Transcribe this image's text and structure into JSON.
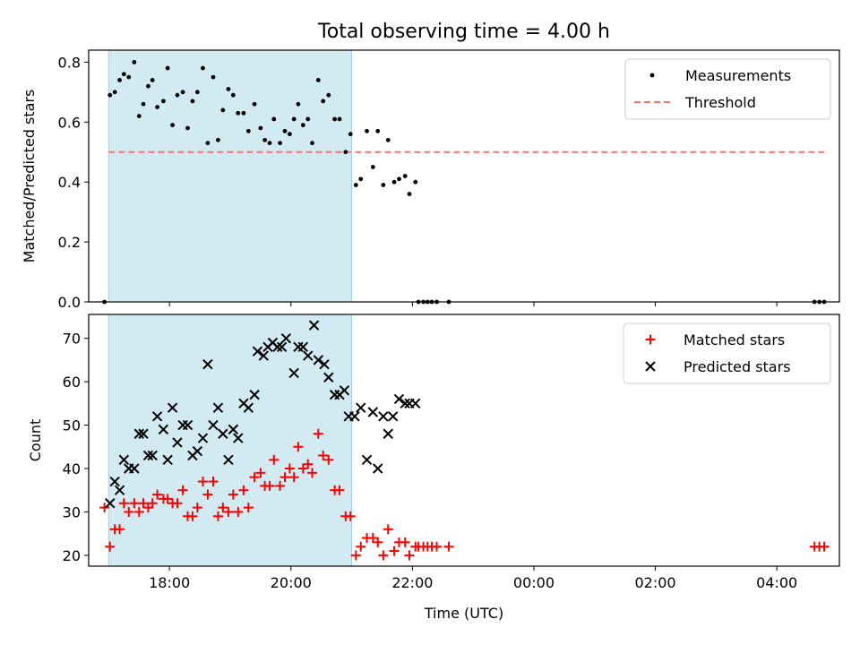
{
  "figure": {
    "title": "Total observing time = 4.00 h"
  },
  "chart_data": [
    {
      "type": "scatter",
      "id": "ratio",
      "xlabel": "",
      "ylabel": "Matched/Predicted stars",
      "xlim": [
        16.67,
        29.03
      ],
      "ylim": [
        0,
        0.84
      ],
      "yticks": [
        0.0,
        0.2,
        0.4,
        0.6,
        0.8
      ],
      "ytick_labels": [
        "0.0",
        "0.2",
        "0.4",
        "0.6",
        "0.8"
      ],
      "highlight_span": {
        "x": [
          17.0,
          21.0
        ],
        "color": "#add8e6"
      },
      "legend": {
        "position": "upper right",
        "entries": [
          {
            "label": "Measurements",
            "marker": "dot",
            "color": "#000000"
          },
          {
            "label": "Threshold",
            "marker": "dashed-line",
            "color": "#ff7070"
          }
        ]
      },
      "threshold": {
        "y": 0.5,
        "x": [
          17.0,
          28.8
        ],
        "color": "#ff7070"
      },
      "series": [
        {
          "name": "Measurements",
          "color": "#000000",
          "points": [
            [
              16.93,
              0.0
            ],
            [
              17.02,
              0.69
            ],
            [
              17.1,
              0.7
            ],
            [
              17.18,
              0.74
            ],
            [
              17.25,
              0.76
            ],
            [
              17.33,
              0.75
            ],
            [
              17.42,
              0.8
            ],
            [
              17.5,
              0.62
            ],
            [
              17.57,
              0.66
            ],
            [
              17.65,
              0.72
            ],
            [
              17.72,
              0.74
            ],
            [
              17.8,
              0.65
            ],
            [
              17.9,
              0.67
            ],
            [
              17.97,
              0.78
            ],
            [
              18.05,
              0.59
            ],
            [
              18.13,
              0.69
            ],
            [
              18.22,
              0.7
            ],
            [
              18.3,
              0.58
            ],
            [
              18.38,
              0.67
            ],
            [
              18.46,
              0.7
            ],
            [
              18.55,
              0.78
            ],
            [
              18.63,
              0.53
            ],
            [
              18.72,
              0.75
            ],
            [
              18.8,
              0.54
            ],
            [
              18.88,
              0.64
            ],
            [
              18.97,
              0.71
            ],
            [
              19.05,
              0.69
            ],
            [
              19.13,
              0.63
            ],
            [
              19.22,
              0.63
            ],
            [
              19.3,
              0.57
            ],
            [
              19.4,
              0.66
            ],
            [
              19.5,
              0.58
            ],
            [
              19.57,
              0.54
            ],
            [
              19.65,
              0.53
            ],
            [
              19.72,
              0.61
            ],
            [
              19.82,
              0.53
            ],
            [
              19.9,
              0.57
            ],
            [
              19.98,
              0.56
            ],
            [
              20.05,
              0.61
            ],
            [
              20.12,
              0.66
            ],
            [
              20.2,
              0.59
            ],
            [
              20.28,
              0.61
            ],
            [
              20.35,
              0.53
            ],
            [
              20.45,
              0.74
            ],
            [
              20.53,
              0.67
            ],
            [
              20.62,
              0.69
            ],
            [
              20.72,
              0.61
            ],
            [
              20.8,
              0.61
            ],
            [
              20.9,
              0.5
            ],
            [
              20.98,
              0.56
            ],
            [
              21.07,
              0.39
            ],
            [
              21.15,
              0.41
            ],
            [
              21.25,
              0.57
            ],
            [
              21.35,
              0.45
            ],
            [
              21.43,
              0.57
            ],
            [
              21.52,
              0.39
            ],
            [
              21.6,
              0.54
            ],
            [
              21.7,
              0.4
            ],
            [
              21.78,
              0.41
            ],
            [
              21.88,
              0.42
            ],
            [
              21.95,
              0.36
            ],
            [
              22.05,
              0.4
            ],
            [
              22.1,
              0.0
            ],
            [
              22.18,
              0.0
            ],
            [
              22.25,
              0.0
            ],
            [
              22.32,
              0.0
            ],
            [
              22.4,
              0.0
            ],
            [
              22.6,
              0.0
            ],
            [
              28.62,
              0.0
            ],
            [
              28.7,
              0.0
            ],
            [
              28.78,
              0.0
            ]
          ]
        }
      ]
    },
    {
      "type": "scatter",
      "id": "counts",
      "xlabel": "Time (UTC)",
      "ylabel": "Count",
      "xlim": [
        16.67,
        29.03
      ],
      "ylim": [
        17.5,
        75.5
      ],
      "yticks": [
        20,
        30,
        40,
        50,
        60,
        70
      ],
      "ytick_labels": [
        "20",
        "30",
        "40",
        "50",
        "60",
        "70"
      ],
      "xticks": [
        18,
        20,
        22,
        24,
        26,
        28
      ],
      "xtick_labels": [
        "18:00",
        "20:00",
        "22:00",
        "00:00",
        "02:00",
        "04:00"
      ],
      "highlight_span": {
        "x": [
          17.0,
          21.0
        ],
        "color": "#add8e6"
      },
      "legend": {
        "position": "upper right",
        "entries": [
          {
            "label": "Matched stars",
            "marker": "plus",
            "color": "#ff0000"
          },
          {
            "label": "Predicted stars",
            "marker": "x",
            "color": "#000000"
          }
        ]
      },
      "series": [
        {
          "name": "Matched stars",
          "marker": "plus",
          "color": "#ff0000",
          "points": [
            [
              16.93,
              31
            ],
            [
              17.02,
              22
            ],
            [
              17.1,
              26
            ],
            [
              17.18,
              26
            ],
            [
              17.25,
              32
            ],
            [
              17.33,
              30
            ],
            [
              17.42,
              32
            ],
            [
              17.5,
              30
            ],
            [
              17.57,
              32
            ],
            [
              17.65,
              31
            ],
            [
              17.72,
              32
            ],
            [
              17.8,
              34
            ],
            [
              17.9,
              33
            ],
            [
              17.97,
              33
            ],
            [
              18.05,
              32
            ],
            [
              18.13,
              32
            ],
            [
              18.22,
              35
            ],
            [
              18.3,
              29
            ],
            [
              18.38,
              29
            ],
            [
              18.46,
              31
            ],
            [
              18.55,
              37
            ],
            [
              18.63,
              34
            ],
            [
              18.72,
              37
            ],
            [
              18.8,
              29
            ],
            [
              18.88,
              31
            ],
            [
              18.97,
              30
            ],
            [
              19.05,
              34
            ],
            [
              19.13,
              30
            ],
            [
              19.22,
              35
            ],
            [
              19.3,
              31
            ],
            [
              19.4,
              38
            ],
            [
              19.5,
              39
            ],
            [
              19.57,
              36
            ],
            [
              19.65,
              36
            ],
            [
              19.72,
              42
            ],
            [
              19.82,
              36
            ],
            [
              19.9,
              38
            ],
            [
              19.98,
              40
            ],
            [
              20.05,
              38
            ],
            [
              20.12,
              45
            ],
            [
              20.2,
              40
            ],
            [
              20.28,
              41
            ],
            [
              20.35,
              39
            ],
            [
              20.45,
              48
            ],
            [
              20.53,
              43
            ],
            [
              20.62,
              42
            ],
            [
              20.72,
              35
            ],
            [
              20.8,
              35
            ],
            [
              20.9,
              29
            ],
            [
              20.98,
              29
            ],
            [
              21.07,
              20
            ],
            [
              21.15,
              22
            ],
            [
              21.25,
              24
            ],
            [
              21.35,
              24
            ],
            [
              21.43,
              23
            ],
            [
              21.52,
              20
            ],
            [
              21.6,
              26
            ],
            [
              21.7,
              21
            ],
            [
              21.78,
              23
            ],
            [
              21.88,
              23
            ],
            [
              21.95,
              20
            ],
            [
              22.05,
              22
            ],
            [
              22.1,
              22
            ],
            [
              22.18,
              22
            ],
            [
              22.25,
              22
            ],
            [
              22.32,
              22
            ],
            [
              22.4,
              22
            ],
            [
              22.6,
              22
            ],
            [
              28.62,
              22
            ],
            [
              28.7,
              22
            ],
            [
              28.78,
              22
            ]
          ]
        },
        {
          "name": "Predicted stars",
          "marker": "x",
          "color": "#000000",
          "points": [
            [
              17.02,
              32
            ],
            [
              17.1,
              37
            ],
            [
              17.18,
              35
            ],
            [
              17.25,
              42
            ],
            [
              17.33,
              40
            ],
            [
              17.42,
              40
            ],
            [
              17.5,
              48
            ],
            [
              17.57,
              48
            ],
            [
              17.65,
              43
            ],
            [
              17.72,
              43
            ],
            [
              17.8,
              52
            ],
            [
              17.9,
              49
            ],
            [
              17.97,
              42
            ],
            [
              18.05,
              54
            ],
            [
              18.13,
              46
            ],
            [
              18.22,
              50
            ],
            [
              18.3,
              50
            ],
            [
              18.38,
              43
            ],
            [
              18.46,
              44
            ],
            [
              18.55,
              47
            ],
            [
              18.63,
              64
            ],
            [
              18.72,
              50
            ],
            [
              18.8,
              54
            ],
            [
              18.88,
              48
            ],
            [
              18.97,
              42
            ],
            [
              19.05,
              49
            ],
            [
              19.13,
              47
            ],
            [
              19.22,
              55
            ],
            [
              19.3,
              54
            ],
            [
              19.4,
              57
            ],
            [
              19.45,
              67
            ],
            [
              19.55,
              66
            ],
            [
              19.62,
              68
            ],
            [
              19.7,
              69
            ],
            [
              19.78,
              68
            ],
            [
              19.85,
              68
            ],
            [
              19.92,
              70
            ],
            [
              20.05,
              62
            ],
            [
              20.12,
              68
            ],
            [
              20.2,
              68
            ],
            [
              20.28,
              66
            ],
            [
              20.38,
              73
            ],
            [
              20.45,
              65
            ],
            [
              20.55,
              64
            ],
            [
              20.62,
              61
            ],
            [
              20.72,
              57
            ],
            [
              20.8,
              57
            ],
            [
              20.88,
              58
            ],
            [
              20.95,
              52
            ],
            [
              21.05,
              52
            ],
            [
              21.15,
              54
            ],
            [
              21.25,
              42
            ],
            [
              21.35,
              53
            ],
            [
              21.43,
              40
            ],
            [
              21.52,
              52
            ],
            [
              21.6,
              48
            ],
            [
              21.68,
              52
            ],
            [
              21.78,
              56
            ],
            [
              21.88,
              55
            ],
            [
              21.95,
              55
            ],
            [
              22.05,
              55
            ]
          ]
        }
      ]
    }
  ]
}
